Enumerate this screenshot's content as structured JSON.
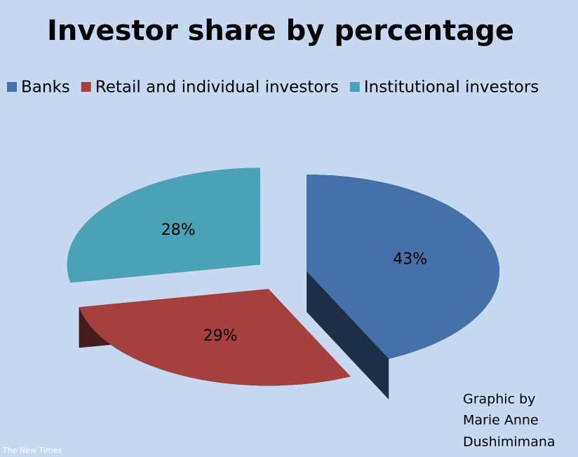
{
  "chart_data": {
    "type": "pie",
    "title": "Investor share by percentage",
    "categories": [
      "Banks",
      "Retail and individual investors",
      "Institutional investors"
    ],
    "values": [
      43,
      29,
      28
    ],
    "value_labels": [
      "43%",
      "29%",
      "28%"
    ],
    "colors": [
      "#4471a9",
      "#a6403f",
      "#4aa2b6"
    ],
    "legend": "top",
    "annotation": [
      "Graphic by",
      "Marie Anne",
      "Dushimimana"
    ],
    "watermark": "The New Times"
  }
}
